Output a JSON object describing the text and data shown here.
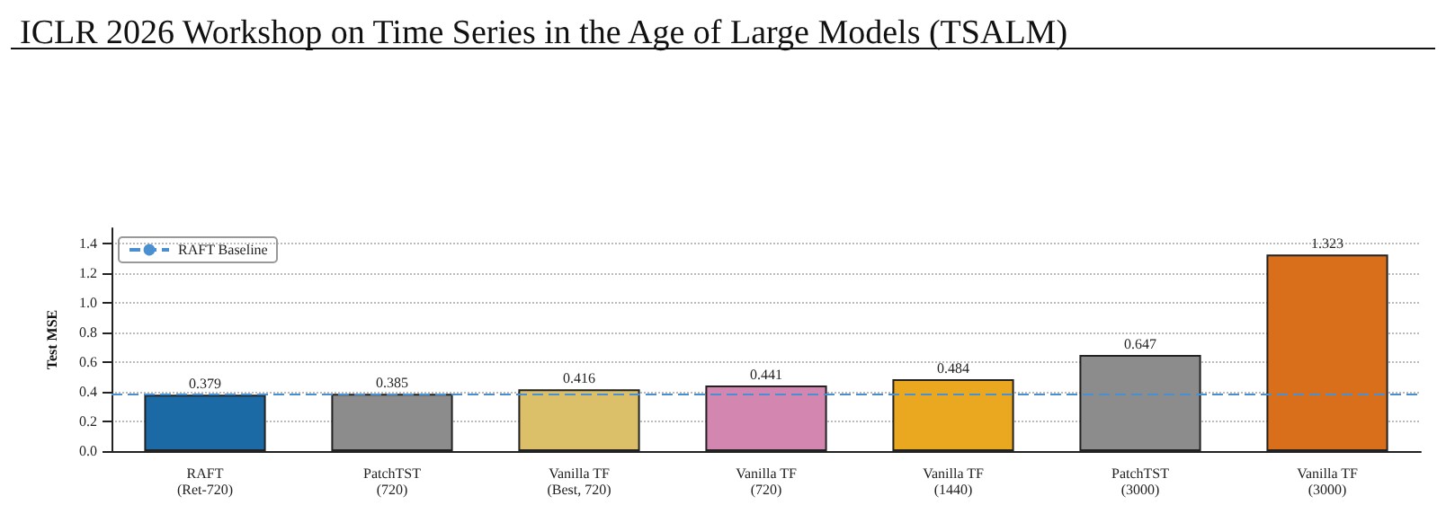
{
  "chart_data": {
    "type": "bar",
    "title": "ICLR 2026 Workshop on Time Series in the Age of Large Models (TSALM)",
    "ylabel": "Test MSE",
    "categories": [
      "RAFT\n(Ret-720)",
      "PatchTST\n(720)",
      "Vanilla TF\n(Best, 720)",
      "Vanilla TF\n(720)",
      "Vanilla TF\n(1440)",
      "PatchTST\n(3000)",
      "Vanilla TF\n(3000)"
    ],
    "values": [
      0.379,
      0.385,
      0.416,
      0.441,
      0.484,
      0.647,
      1.323
    ],
    "colors": [
      "#1b6aa5",
      "#8c8c8c",
      "#dbbf69",
      "#d387b0",
      "#e9a81f",
      "#8c8c8c",
      "#d96e1b"
    ],
    "ylim": [
      0,
      1.5
    ],
    "yticks": [
      {
        "value": 0,
        "label": "0.0"
      },
      0.2,
      0.4,
      0.6,
      0.8,
      {
        "value": 1,
        "label": "1.0"
      },
      1.2,
      1.4
    ],
    "ref_lines": [
      {
        "axis": "y",
        "value": 0.379,
        "label": "RAFT Baseline",
        "color": "#4a90d0",
        "line_style": "dashed"
      }
    ],
    "data_labels": true,
    "grid": "y",
    "legend": "top left"
  }
}
